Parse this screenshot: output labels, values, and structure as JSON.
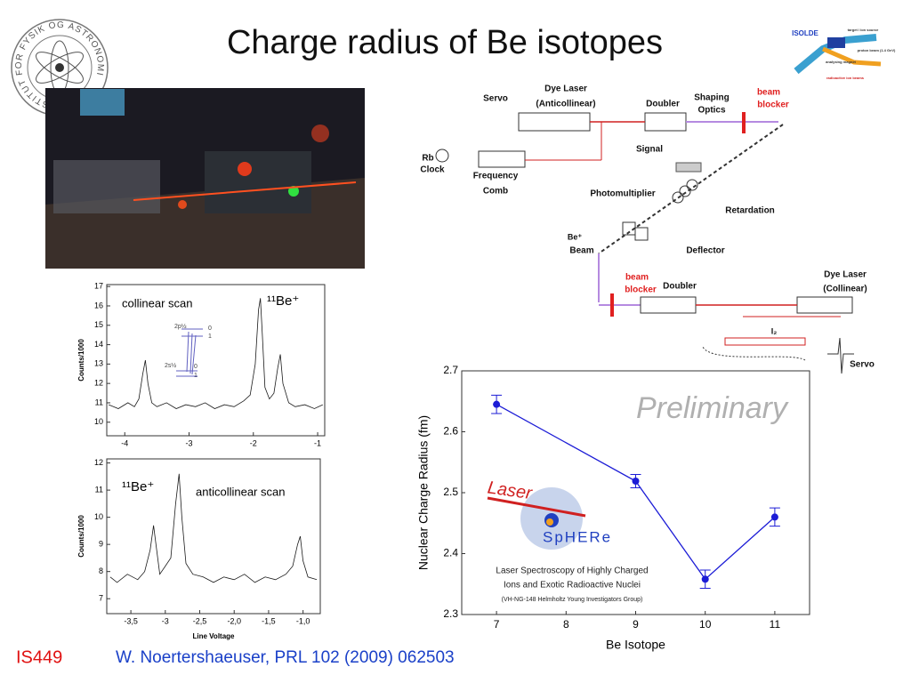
{
  "title": "Charge radius of Be isotopes",
  "logo": {
    "text": "INSTITUT FOR FYSIK OG ASTRONOMI"
  },
  "isolde": {
    "labels": [
      "ISOLDE",
      "target / ion source",
      "proton beam (1.4 GeV)",
      "analysing magnet",
      "radioactive ion beams"
    ]
  },
  "setup": {
    "labels": [
      "Servo",
      "Dye Laser",
      "(Anticollinear)",
      "Doubler",
      "Shaping",
      "Optics",
      "beam",
      "blocker",
      "Rb",
      "Clock",
      "Frequency",
      "Comb",
      "Signal",
      "Photomultiplier",
      "Retardation",
      "Be⁺",
      "Beam",
      "Deflector",
      "beam",
      "blocker",
      "Doubler",
      "Dye Laser",
      "(Collinear)",
      "I₂",
      "Servo"
    ]
  },
  "spectra": [
    {
      "type": "line",
      "annotation": "collinear scan",
      "isotope": "¹¹Be⁺",
      "y_label": "Counts/1000",
      "levels": [
        "2p½",
        "0",
        "1",
        "2s½",
        "0",
        "1"
      ],
      "x": [
        -4.25,
        -4.1,
        -3.95,
        -3.85,
        -3.78,
        -3.72,
        -3.68,
        -3.64,
        -3.58,
        -3.5,
        -3.35,
        -3.2,
        -3.05,
        -2.9,
        -2.75,
        -2.6,
        -2.45,
        -2.3,
        -2.15,
        -2.05,
        -1.97,
        -1.92,
        -1.89,
        -1.86,
        -1.82,
        -1.75,
        -1.68,
        -1.62,
        -1.58,
        -1.54,
        -1.45,
        -1.35,
        -1.2,
        -1.05,
        -0.92
      ],
      "values": [
        10.9,
        10.7,
        11.0,
        10.8,
        11.2,
        12.5,
        13.2,
        12.0,
        11.0,
        10.8,
        11.0,
        10.7,
        10.9,
        10.8,
        11.0,
        10.7,
        10.9,
        10.8,
        11.1,
        11.4,
        13.0,
        15.8,
        16.4,
        14.5,
        11.8,
        11.2,
        11.5,
        12.8,
        13.5,
        12.0,
        11.0,
        10.8,
        10.9,
        10.7,
        10.9
      ],
      "xlim": [
        -4.28,
        -0.89
      ],
      "ylim": [
        9.3,
        17.1
      ],
      "xticks": [
        -4,
        -3,
        -2,
        -1
      ],
      "yticks": [
        10,
        11,
        12,
        13,
        14,
        15,
        16,
        17
      ],
      "color": "#1a1a1a"
    },
    {
      "type": "line",
      "annotation": "anticollinear scan",
      "isotope": "¹¹Be⁺",
      "y_label": "Counts/1000",
      "x_label": "Line Voltage",
      "x": [
        -3.8,
        -3.7,
        -3.55,
        -3.4,
        -3.3,
        -3.22,
        -3.17,
        -3.13,
        -3.08,
        -3.0,
        -2.92,
        -2.85,
        -2.8,
        -2.76,
        -2.7,
        -2.6,
        -2.45,
        -2.3,
        -2.15,
        -2.0,
        -1.85,
        -1.7,
        -1.55,
        -1.4,
        -1.25,
        -1.15,
        -1.08,
        -1.04,
        -1.0,
        -0.93,
        -0.8
      ],
      "values": [
        7.8,
        7.6,
        7.9,
        7.7,
        8.0,
        8.8,
        9.7,
        8.9,
        7.9,
        8.2,
        8.5,
        10.5,
        11.6,
        10.0,
        8.3,
        7.9,
        7.8,
        7.6,
        7.8,
        7.7,
        7.9,
        7.6,
        7.8,
        7.7,
        7.9,
        8.2,
        9.0,
        9.3,
        8.4,
        7.8,
        7.7
      ],
      "xlim": [
        -3.85,
        -0.75
      ],
      "ylim": [
        6.45,
        12.15
      ],
      "xticks": [
        {
          "value": -3.5,
          "label": "-3,5"
        },
        -3,
        {
          "value": -2.5,
          "label": "-2,5"
        },
        {
          "value": -2,
          "label": "-2,0"
        },
        {
          "value": -1.5,
          "label": "-1,5"
        },
        {
          "value": -1,
          "label": "-1,0"
        }
      ],
      "yticks": [
        7,
        8,
        9,
        10,
        11,
        12
      ],
      "color": "#1a1a1a"
    }
  ],
  "chart_data": {
    "type": "line",
    "x_label": "Be Isotope",
    "y_label": "Nuclear Charge Radius (fm)",
    "annotation": "Preliminary",
    "x": [
      7,
      9,
      10,
      11
    ],
    "xlim": [
      6.5,
      11.5
    ],
    "xticks": [
      7,
      8,
      9,
      10,
      11
    ],
    "ylim": [
      2.3,
      2.7
    ],
    "yticks": [
      2.3,
      2.4,
      2.5,
      2.6,
      2.7
    ],
    "series": [
      {
        "color": "#1c1cd6",
        "values": [
          2.645,
          2.519,
          2.358,
          2.46
        ],
        "errors": [
          0.015,
          0.011,
          0.015,
          0.015
        ]
      }
    ]
  },
  "sphere": {
    "logo_top": "Laser",
    "logo_bottom": "SpHERe",
    "lines": [
      "Laser Spectroscopy of Highly Charged",
      "Ions and Exotic Radioactive Nuclei",
      "(VH-NG-148 Helmholtz Young Investigators Group)"
    ]
  },
  "footer": {
    "experiment": "IS449",
    "reference": "W. Noertershaeuser, PRL 102 (2009) 062503"
  }
}
